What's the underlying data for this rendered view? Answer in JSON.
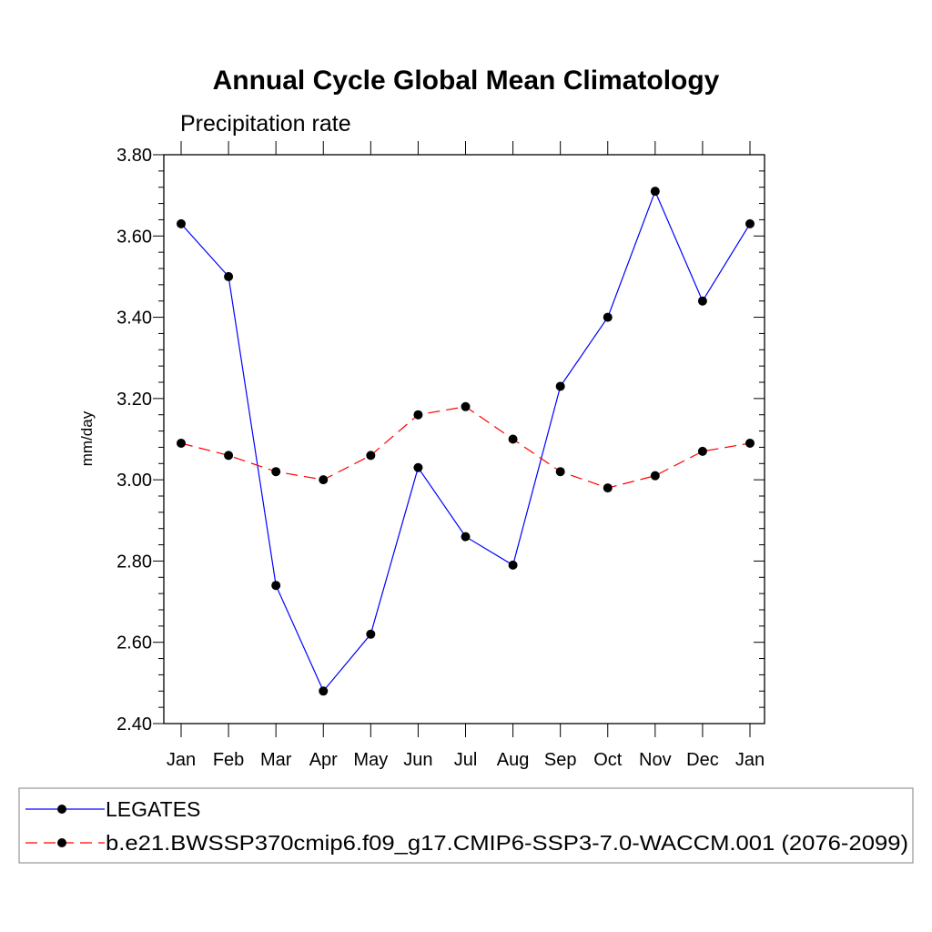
{
  "chart_data": {
    "type": "line",
    "title": "Annual Cycle Global Mean Climatology",
    "subtitle": "Precipitation rate",
    "xlabel": "",
    "ylabel": "mm/day",
    "categories": [
      "Jan",
      "Feb",
      "Mar",
      "Apr",
      "May",
      "Jun",
      "Jul",
      "Aug",
      "Sep",
      "Oct",
      "Nov",
      "Dec",
      "Jan"
    ],
    "ylim": [
      2.4,
      3.8
    ],
    "yticks": [
      "2.40",
      "2.60",
      "2.80",
      "3.00",
      "3.20",
      "3.40",
      "3.60",
      "3.80"
    ],
    "grid": false,
    "legend_position": "bottom",
    "series": [
      {
        "name": "LEGATES",
        "color": "#0000ff",
        "dash": "solid",
        "marker": "filled-circle",
        "values": [
          3.63,
          3.5,
          2.74,
          2.48,
          2.62,
          3.03,
          2.86,
          2.79,
          3.23,
          3.4,
          3.71,
          3.44,
          3.63
        ]
      },
      {
        "name": "b.e21.BWSSP370cmip6.f09_g17.CMIP6-SSP3-7.0-WACCM.001 (2076-2099)",
        "color": "#ff0000",
        "dash": "dashed",
        "marker": "filled-circle",
        "values": [
          3.09,
          3.06,
          3.02,
          3.0,
          3.06,
          3.16,
          3.18,
          3.1,
          3.02,
          2.98,
          3.01,
          3.07,
          3.09
        ]
      }
    ]
  }
}
